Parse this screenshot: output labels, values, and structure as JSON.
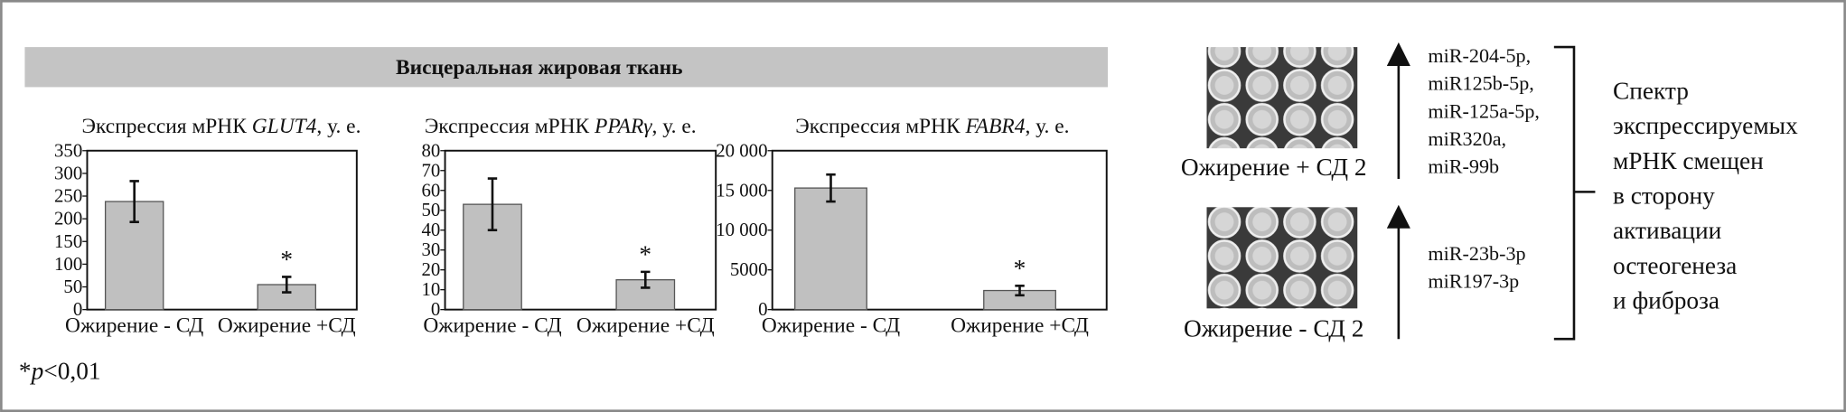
{
  "header": {
    "title": "Висцеральная жировая ткань"
  },
  "chart_data": [
    {
      "type": "bar",
      "title_parts": [
        "Экспрессия мРНК ",
        "GLUT4",
        ", у. е."
      ],
      "categories": [
        "Ожирение - СД",
        "Ожирение +СД"
      ],
      "values": [
        238,
        55
      ],
      "errors": [
        45,
        17
      ],
      "annotations": [
        null,
        "*"
      ],
      "color": "#c0c0c0",
      "ylim": [
        0,
        350
      ],
      "yticks": [
        0,
        50,
        100,
        150,
        200,
        250,
        300,
        350
      ]
    },
    {
      "type": "bar",
      "title_parts": [
        "Экспрессия мРНК ",
        "PPARγ",
        ", у. е."
      ],
      "categories": [
        "Ожирение - СД",
        "Ожирение +СД"
      ],
      "values": [
        53,
        15
      ],
      "errors": [
        13,
        4
      ],
      "annotations": [
        null,
        "*"
      ],
      "color": "#c0c0c0",
      "ylim": [
        0,
        80
      ],
      "yticks": [
        0,
        10,
        20,
        30,
        40,
        50,
        60,
        70,
        80
      ]
    },
    {
      "type": "bar",
      "title_parts": [
        "Экспрессия мРНК ",
        "FABR4",
        ", у. е."
      ],
      "categories": [
        "Ожирение - СД",
        "Ожирение +СД"
      ],
      "values": [
        15300,
        2400
      ],
      "errors": [
        1700,
        600
      ],
      "annotations": [
        null,
        "*"
      ],
      "color": "#c0c0c0",
      "ylim": [
        0,
        20000
      ],
      "yticks": [
        0,
        5000,
        {
          "value": 10000,
          "label": "10 000"
        },
        {
          "value": 15000,
          "label": "15 000"
        },
        {
          "value": 20000,
          "label": "20 000"
        }
      ]
    }
  ],
  "footnote": [
    "*",
    "p",
    "<0,01"
  ],
  "groups": [
    {
      "label": "Ожирение + СД 2",
      "mirnas": [
        "miR-204-5p,",
        "miR125b-5p,",
        "miR-125a-5p,",
        "miR320a,",
        "miR-99b"
      ]
    },
    {
      "label": "Ожирение - СД 2",
      "mirnas": [
        "miR-23b-3p",
        "miR197-3p"
      ]
    }
  ],
  "conclusion": [
    "Спектр",
    "экспрессируемых",
    "мРНК смещен",
    "в сторону",
    "активации",
    "остеогенеза",
    "и фиброза"
  ]
}
